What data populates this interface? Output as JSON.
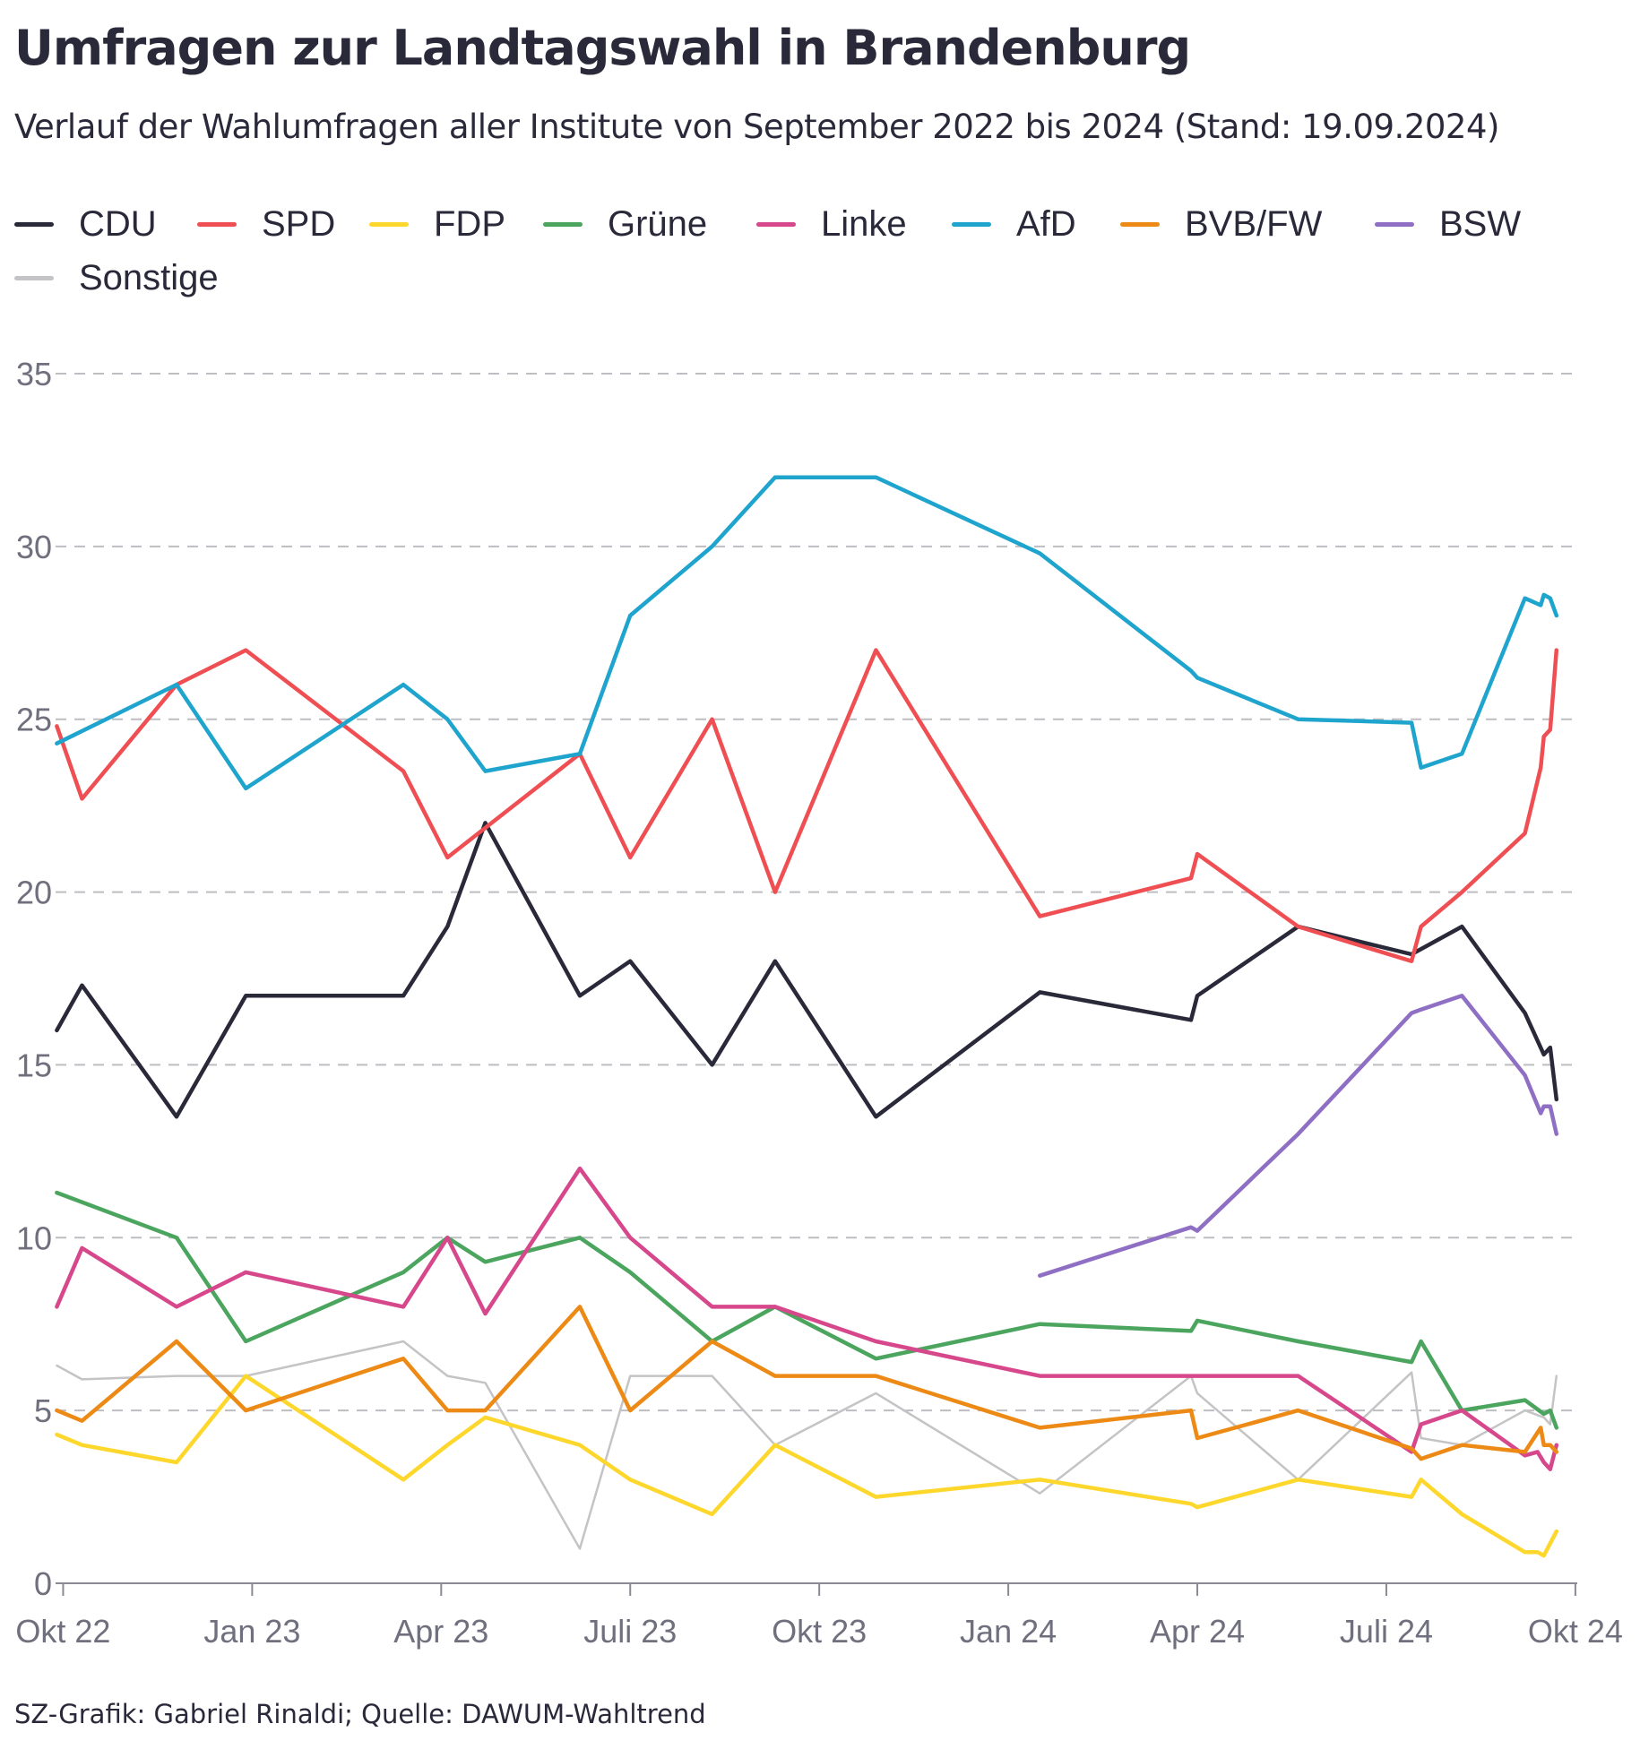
{
  "title": "Umfragen zur Landtagswahl in Brandenburg",
  "subtitle": "Verlauf der Wahlumfragen aller Institute von September 2022 bis 2024 (Stand: 19.09.2024)",
  "source": "SZ-Grafik: Gabriel Rinaldi; Quelle: DAWUM-Wahltrend",
  "chart_data": {
    "type": "line",
    "title": "Umfragen zur Landtagswahl in Brandenburg",
    "xlabel": "",
    "ylabel": "",
    "ylim": [
      0,
      35
    ],
    "yticks": [
      0,
      5,
      10,
      15,
      20,
      25,
      30,
      35
    ],
    "xlim": [
      -0.12,
      24.03
    ],
    "xticks": [
      {
        "label": "Okt 22",
        "x": 0
      },
      {
        "label": "Jan 23",
        "x": 3
      },
      {
        "label": "Apr 23",
        "x": 6
      },
      {
        "label": "Juli 23",
        "x": 9
      },
      {
        "label": "Okt 23",
        "x": 12
      },
      {
        "label": "Jan 24",
        "x": 15
      },
      {
        "label": "Apr 24",
        "x": 18
      },
      {
        "label": "Juli 24",
        "x": 21
      },
      {
        "label": "Okt 24",
        "x": 24
      }
    ],
    "x_unit": "months since Oct 2022",
    "grid": true,
    "legend_position": "top-left",
    "series": [
      {
        "name": "CDU",
        "color": "#29293a",
        "points": [
          [
            -0.1,
            16
          ],
          [
            0.3,
            17.3
          ],
          [
            1.8,
            13.5
          ],
          [
            2.9,
            17
          ],
          [
            5.4,
            17
          ],
          [
            6.1,
            19
          ],
          [
            6.7,
            22
          ],
          [
            8.2,
            17
          ],
          [
            9.0,
            18
          ],
          [
            10.3,
            15
          ],
          [
            11.3,
            18
          ],
          [
            12.9,
            13.5
          ],
          [
            15.5,
            17.1
          ],
          [
            17.9,
            16.3
          ],
          [
            18.0,
            17
          ],
          [
            19.6,
            19
          ],
          [
            21.4,
            18.2
          ],
          [
            22.2,
            19
          ],
          [
            23.2,
            16.5
          ],
          [
            23.5,
            15.3
          ],
          [
            23.6,
            15.5
          ],
          [
            23.7,
            14
          ]
        ]
      },
      {
        "name": "SPD",
        "color": "#ef4f53",
        "points": [
          [
            -0.1,
            24.8
          ],
          [
            0.3,
            22.7
          ],
          [
            1.8,
            26
          ],
          [
            2.9,
            27
          ],
          [
            5.4,
            23.5
          ],
          [
            6.1,
            21
          ],
          [
            8.2,
            24
          ],
          [
            9.0,
            21
          ],
          [
            10.3,
            25
          ],
          [
            11.3,
            20
          ],
          [
            12.9,
            27
          ],
          [
            15.5,
            19.3
          ],
          [
            17.9,
            20.4
          ],
          [
            18.0,
            21.1
          ],
          [
            19.6,
            19
          ],
          [
            21.4,
            18
          ],
          [
            21.55,
            19
          ],
          [
            22.2,
            20
          ],
          [
            23.2,
            21.7
          ],
          [
            23.45,
            23.6
          ],
          [
            23.5,
            24.5
          ],
          [
            23.6,
            24.7
          ],
          [
            23.7,
            27
          ]
        ]
      },
      {
        "name": "FDP",
        "color": "#fed72d",
        "points": [
          [
            -0.1,
            4.3
          ],
          [
            0.3,
            4
          ],
          [
            1.8,
            3.5
          ],
          [
            2.9,
            6
          ],
          [
            5.4,
            3
          ],
          [
            6.1,
            4
          ],
          [
            6.7,
            4.8
          ],
          [
            8.2,
            4
          ],
          [
            9.0,
            3
          ],
          [
            10.3,
            2
          ],
          [
            11.3,
            4
          ],
          [
            12.9,
            2.5
          ],
          [
            15.5,
            3
          ],
          [
            17.9,
            2.3
          ],
          [
            18.0,
            2.2
          ],
          [
            19.6,
            3
          ],
          [
            21.4,
            2.5
          ],
          [
            21.55,
            3
          ],
          [
            22.2,
            2
          ],
          [
            23.2,
            0.9
          ],
          [
            23.4,
            0.9
          ],
          [
            23.5,
            0.8
          ],
          [
            23.7,
            1.5
          ]
        ]
      },
      {
        "name": "Grüne",
        "color": "#4ba55e",
        "points": [
          [
            -0.1,
            11.3
          ],
          [
            1.8,
            10
          ],
          [
            2.9,
            7
          ],
          [
            5.4,
            9
          ],
          [
            6.1,
            10
          ],
          [
            6.7,
            9.3
          ],
          [
            8.2,
            10
          ],
          [
            9.0,
            9
          ],
          [
            10.3,
            7
          ],
          [
            11.3,
            8
          ],
          [
            12.9,
            6.5
          ],
          [
            15.5,
            7.5
          ],
          [
            17.9,
            7.3
          ],
          [
            18.0,
            7.6
          ],
          [
            19.6,
            7
          ],
          [
            21.4,
            6.4
          ],
          [
            21.55,
            7
          ],
          [
            22.2,
            5
          ],
          [
            23.2,
            5.3
          ],
          [
            23.5,
            4.9
          ],
          [
            23.6,
            5
          ],
          [
            23.7,
            4.5
          ]
        ]
      },
      {
        "name": "Linke",
        "color": "#d6478b",
        "points": [
          [
            -0.1,
            8
          ],
          [
            0.3,
            9.7
          ],
          [
            1.8,
            8
          ],
          [
            2.9,
            9
          ],
          [
            5.4,
            8
          ],
          [
            6.1,
            10
          ],
          [
            6.7,
            7.8
          ],
          [
            8.2,
            12
          ],
          [
            9.0,
            10
          ],
          [
            10.3,
            8
          ],
          [
            11.3,
            8
          ],
          [
            12.9,
            7
          ],
          [
            15.5,
            6
          ],
          [
            17.9,
            6
          ],
          [
            18.0,
            6
          ],
          [
            19.6,
            6
          ],
          [
            21.4,
            3.8
          ],
          [
            21.55,
            4.6
          ],
          [
            22.2,
            5
          ],
          [
            23.2,
            3.7
          ],
          [
            23.4,
            3.8
          ],
          [
            23.5,
            3.5
          ],
          [
            23.6,
            3.3
          ],
          [
            23.7,
            4
          ]
        ]
      },
      {
        "name": "AfD",
        "color": "#1ea4cd",
        "points": [
          [
            -0.1,
            24.3
          ],
          [
            1.8,
            26
          ],
          [
            2.9,
            23
          ],
          [
            5.4,
            26
          ],
          [
            6.1,
            25
          ],
          [
            6.7,
            23.5
          ],
          [
            8.2,
            24
          ],
          [
            9.0,
            28
          ],
          [
            10.3,
            30
          ],
          [
            11.3,
            32
          ],
          [
            12.9,
            32
          ],
          [
            15.5,
            29.8
          ],
          [
            17.9,
            26.4
          ],
          [
            18.0,
            26.2
          ],
          [
            19.6,
            25
          ],
          [
            21.4,
            24.9
          ],
          [
            21.55,
            23.6
          ],
          [
            22.2,
            24
          ],
          [
            23.2,
            28.5
          ],
          [
            23.45,
            28.3
          ],
          [
            23.5,
            28.6
          ],
          [
            23.6,
            28.5
          ],
          [
            23.7,
            28
          ]
        ]
      },
      {
        "name": "BVB/FW",
        "color": "#ec8a15",
        "points": [
          [
            -0.1,
            5
          ],
          [
            0.3,
            4.7
          ],
          [
            1.8,
            7
          ],
          [
            2.9,
            5
          ],
          [
            5.4,
            6.5
          ],
          [
            6.1,
            5
          ],
          [
            6.7,
            5
          ],
          [
            8.2,
            8
          ],
          [
            9.0,
            5
          ],
          [
            10.3,
            7
          ],
          [
            11.3,
            6
          ],
          [
            12.9,
            6
          ],
          [
            15.5,
            4.5
          ],
          [
            17.9,
            5
          ],
          [
            18.0,
            4.2
          ],
          [
            19.6,
            5
          ],
          [
            21.4,
            3.9
          ],
          [
            21.55,
            3.6
          ],
          [
            22.2,
            4
          ],
          [
            23.2,
            3.8
          ],
          [
            23.45,
            4.5
          ],
          [
            23.5,
            4
          ],
          [
            23.6,
            4
          ],
          [
            23.7,
            3.8
          ]
        ]
      },
      {
        "name": "BSW",
        "color": "#8f6fc4",
        "points": [
          [
            15.5,
            8.9
          ],
          [
            17.9,
            10.3
          ],
          [
            18.0,
            10.2
          ],
          [
            19.6,
            13
          ],
          [
            21.4,
            16.5
          ],
          [
            21.55,
            16.6
          ],
          [
            22.2,
            17
          ],
          [
            23.2,
            14.7
          ],
          [
            23.45,
            13.6
          ],
          [
            23.5,
            13.8
          ],
          [
            23.6,
            13.8
          ],
          [
            23.7,
            13
          ]
        ]
      },
      {
        "name": "Sonstige",
        "color": "#c4c4c6",
        "points": [
          [
            -0.1,
            6.3
          ],
          [
            0.3,
            5.9
          ],
          [
            1.8,
            6
          ],
          [
            2.9,
            6
          ],
          [
            5.4,
            7
          ],
          [
            6.1,
            6
          ],
          [
            6.7,
            5.8
          ],
          [
            8.2,
            1
          ],
          [
            9.0,
            6
          ],
          [
            10.3,
            6
          ],
          [
            11.3,
            4
          ],
          [
            12.9,
            5.5
          ],
          [
            15.5,
            2.6
          ],
          [
            17.9,
            6
          ],
          [
            18.0,
            5.5
          ],
          [
            19.6,
            3
          ],
          [
            21.4,
            6.1
          ],
          [
            21.55,
            4.2
          ],
          [
            22.2,
            4
          ],
          [
            23.2,
            5
          ],
          [
            23.5,
            4.8
          ],
          [
            23.6,
            4.6
          ],
          [
            23.7,
            6
          ]
        ]
      }
    ]
  }
}
